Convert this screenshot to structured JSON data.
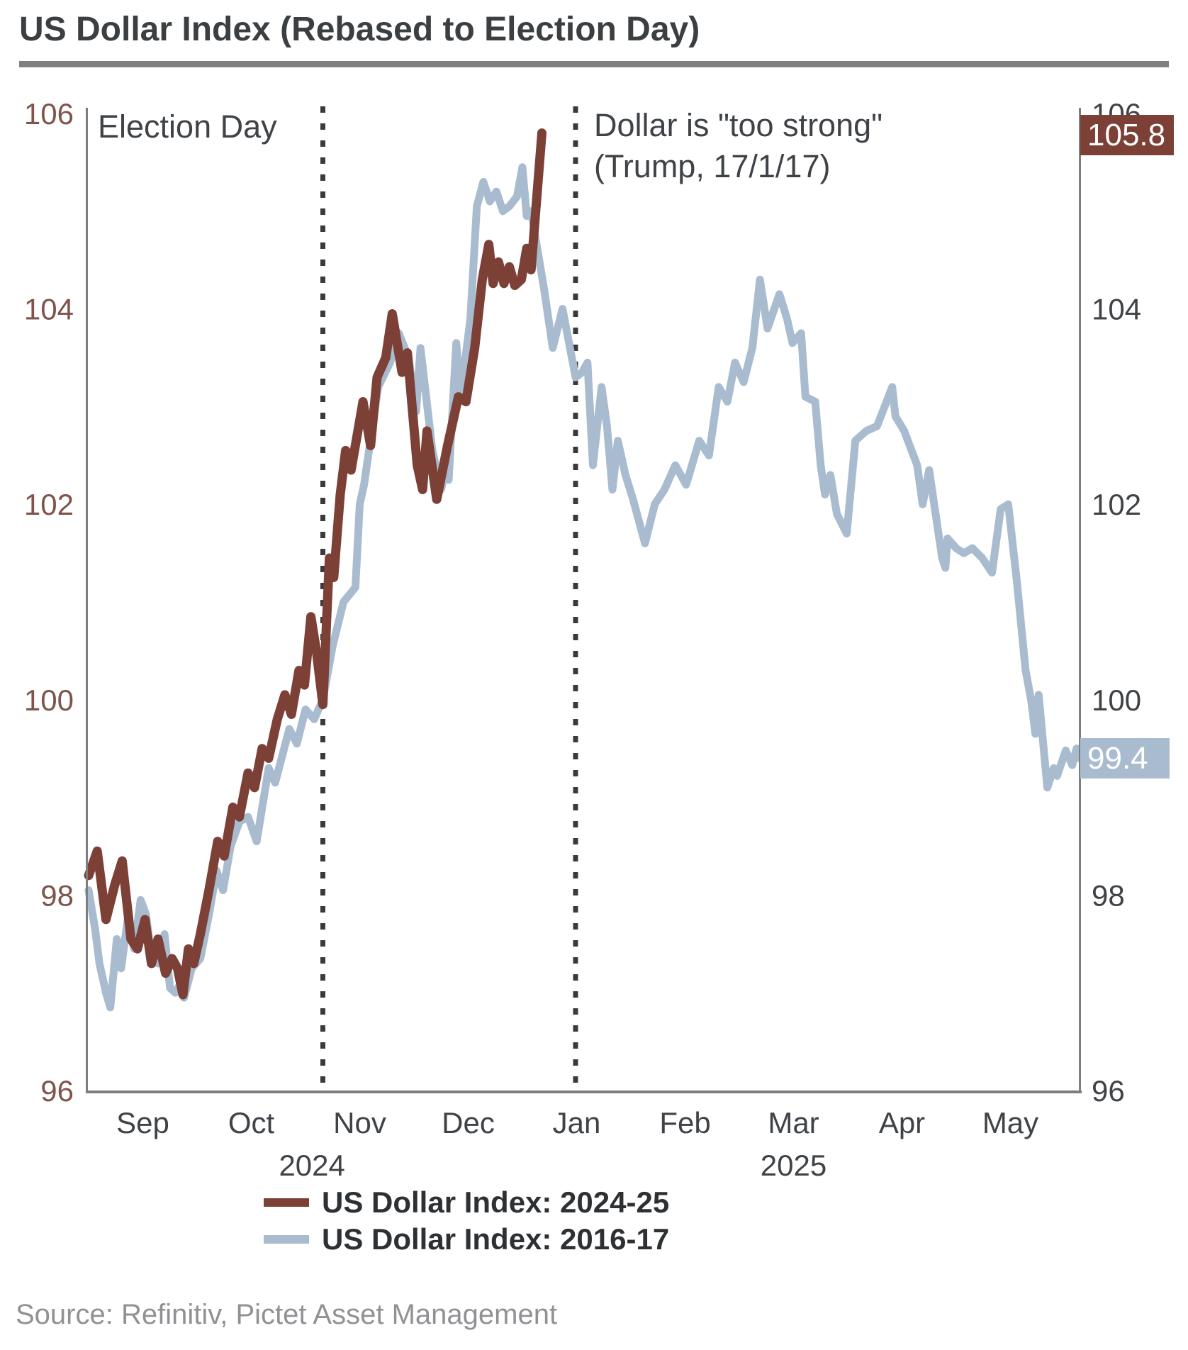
{
  "title": "US Dollar Index (Rebased to Election Day)",
  "source": "Source: Refinitiv, Pictet Asset Management",
  "annotations": {
    "election_day": "Election Day",
    "too_strong_line1": "Dollar is \"too strong\"",
    "too_strong_line2": "(Trump, 17/1/17)"
  },
  "badges": {
    "last_2024_25": "105.8",
    "last_2016_17": "99.4"
  },
  "legend": [
    {
      "label": "US Dollar Index: 2024-25",
      "color": "#7C4037"
    },
    {
      "label": "US Dollar Index: 2016-17",
      "color": "#A9BCCF"
    }
  ],
  "colors": {
    "accent_brown": "#7C4037",
    "accent_blue": "#A9BCCF",
    "axis_gray": "#7E7E7E",
    "left_tick_brown": "#7E544B",
    "text_dark": "#3F4347",
    "dotted_line": "#3A3A3A",
    "title_rule": "#808080"
  },
  "chart_data": {
    "type": "line",
    "title": "US Dollar Index (Rebased to Election Day)",
    "xlabel": "",
    "ylabel": "",
    "ylim": [
      96,
      106
    ],
    "grid": false,
    "legend_position": "bottom",
    "x_axis": {
      "unit": "months since 1 Sep of election year",
      "months": [
        {
          "label": "Sep",
          "t": 0.5
        },
        {
          "label": "Oct",
          "t": 1.5
        },
        {
          "label": "Nov",
          "t": 2.5
        },
        {
          "label": "Dec",
          "t": 3.5
        },
        {
          "label": "Jan",
          "t": 4.5
        },
        {
          "label": "Feb",
          "t": 5.5
        },
        {
          "label": "Mar",
          "t": 6.5
        },
        {
          "label": "Apr",
          "t": 7.5
        },
        {
          "label": "May",
          "t": 8.5
        }
      ],
      "years": [
        {
          "label": "2024",
          "t": 2.06
        },
        {
          "label": "2025",
          "t": 6.5
        }
      ]
    },
    "y_axis": {
      "ticks": [
        96,
        98,
        100,
        102,
        104,
        106
      ],
      "sides": [
        "left",
        "right"
      ]
    },
    "vlines": [
      {
        "t": 2.16,
        "label": "Election Day"
      },
      {
        "t": 4.49,
        "label": "Dollar is \"too strong\" (Trump, 17/1/17)"
      }
    ],
    "series": [
      {
        "name": "US Dollar Index: 2024-25",
        "color": "#7C4037",
        "last_value": 105.8,
        "points": [
          [
            0.0,
            98.2
          ],
          [
            0.08,
            98.45
          ],
          [
            0.16,
            97.75
          ],
          [
            0.24,
            98.1
          ],
          [
            0.31,
            98.35
          ],
          [
            0.39,
            97.55
          ],
          [
            0.45,
            97.45
          ],
          [
            0.52,
            97.75
          ],
          [
            0.58,
            97.3
          ],
          [
            0.64,
            97.55
          ],
          [
            0.71,
            97.2
          ],
          [
            0.77,
            97.35
          ],
          [
            0.82,
            97.25
          ],
          [
            0.87,
            96.98
          ],
          [
            0.92,
            97.45
          ],
          [
            0.97,
            97.3
          ],
          [
            1.03,
            97.6
          ],
          [
            1.11,
            98.05
          ],
          [
            1.19,
            98.55
          ],
          [
            1.25,
            98.4
          ],
          [
            1.33,
            98.9
          ],
          [
            1.39,
            98.8
          ],
          [
            1.47,
            99.25
          ],
          [
            1.53,
            99.1
          ],
          [
            1.6,
            99.5
          ],
          [
            1.66,
            99.4
          ],
          [
            1.74,
            99.8
          ],
          [
            1.81,
            100.05
          ],
          [
            1.87,
            99.85
          ],
          [
            1.94,
            100.3
          ],
          [
            1.99,
            100.15
          ],
          [
            2.05,
            100.85
          ],
          [
            2.1,
            100.5
          ],
          [
            2.16,
            99.95
          ],
          [
            2.22,
            101.45
          ],
          [
            2.26,
            101.25
          ],
          [
            2.32,
            102.1
          ],
          [
            2.37,
            102.55
          ],
          [
            2.42,
            102.35
          ],
          [
            2.53,
            103.05
          ],
          [
            2.6,
            102.6
          ],
          [
            2.66,
            103.3
          ],
          [
            2.74,
            103.5
          ],
          [
            2.8,
            103.95
          ],
          [
            2.89,
            103.35
          ],
          [
            2.94,
            103.55
          ],
          [
            3.03,
            102.4
          ],
          [
            3.08,
            102.15
          ],
          [
            3.12,
            102.75
          ],
          [
            3.21,
            102.05
          ],
          [
            3.31,
            102.6
          ],
          [
            3.41,
            103.1
          ],
          [
            3.48,
            103.05
          ],
          [
            3.56,
            103.6
          ],
          [
            3.63,
            104.3
          ],
          [
            3.69,
            104.66
          ],
          [
            3.73,
            104.26
          ],
          [
            3.78,
            104.48
          ],
          [
            3.83,
            104.26
          ],
          [
            3.88,
            104.43
          ],
          [
            3.93,
            104.24
          ],
          [
            3.99,
            104.3
          ],
          [
            4.04,
            104.62
          ],
          [
            4.08,
            104.4
          ],
          [
            4.18,
            105.8
          ]
        ]
      },
      {
        "name": "US Dollar Index: 2016-17",
        "color": "#A9BCCF",
        "last_value": 99.4,
        "points": [
          [
            0.0,
            98.05
          ],
          [
            0.06,
            97.65
          ],
          [
            0.1,
            97.3
          ],
          [
            0.16,
            97.0
          ],
          [
            0.2,
            96.85
          ],
          [
            0.26,
            97.55
          ],
          [
            0.3,
            97.25
          ],
          [
            0.36,
            97.75
          ],
          [
            0.42,
            97.45
          ],
          [
            0.48,
            97.95
          ],
          [
            0.53,
            97.8
          ],
          [
            0.58,
            97.35
          ],
          [
            0.64,
            97.3
          ],
          [
            0.7,
            97.6
          ],
          [
            0.75,
            97.05
          ],
          [
            0.8,
            97.0
          ],
          [
            0.85,
            97.1
          ],
          [
            0.88,
            96.95
          ],
          [
            0.95,
            97.25
          ],
          [
            1.03,
            97.35
          ],
          [
            1.11,
            97.8
          ],
          [
            1.18,
            98.25
          ],
          [
            1.24,
            98.05
          ],
          [
            1.31,
            98.5
          ],
          [
            1.39,
            98.75
          ],
          [
            1.47,
            98.8
          ],
          [
            1.55,
            98.55
          ],
          [
            1.66,
            99.3
          ],
          [
            1.72,
            99.15
          ],
          [
            1.85,
            99.7
          ],
          [
            1.92,
            99.55
          ],
          [
            2.0,
            99.9
          ],
          [
            2.08,
            99.8
          ],
          [
            2.16,
            100.0
          ],
          [
            2.25,
            100.55
          ],
          [
            2.35,
            101.0
          ],
          [
            2.46,
            101.15
          ],
          [
            2.5,
            102.0
          ],
          [
            2.54,
            102.2
          ],
          [
            2.67,
            103.2
          ],
          [
            2.78,
            103.45
          ],
          [
            2.86,
            103.75
          ],
          [
            2.95,
            103.5
          ],
          [
            3.02,
            102.95
          ],
          [
            3.06,
            103.6
          ],
          [
            3.17,
            102.55
          ],
          [
            3.25,
            102.15
          ],
          [
            3.28,
            102.3
          ],
          [
            3.32,
            102.25
          ],
          [
            3.39,
            103.65
          ],
          [
            3.43,
            103.1
          ],
          [
            3.52,
            103.9
          ],
          [
            3.58,
            105.05
          ],
          [
            3.64,
            105.3
          ],
          [
            3.7,
            105.1
          ],
          [
            3.76,
            105.2
          ],
          [
            3.82,
            105.0
          ],
          [
            3.88,
            105.05
          ],
          [
            3.95,
            105.15
          ],
          [
            4.0,
            105.45
          ],
          [
            4.04,
            104.95
          ],
          [
            4.08,
            105.0
          ],
          [
            4.2,
            104.2
          ],
          [
            4.28,
            103.6
          ],
          [
            4.37,
            104.0
          ],
          [
            4.49,
            103.3
          ],
          [
            4.55,
            103.35
          ],
          [
            4.6,
            103.45
          ],
          [
            4.65,
            102.4
          ],
          [
            4.73,
            103.2
          ],
          [
            4.78,
            102.8
          ],
          [
            4.83,
            102.15
          ],
          [
            4.88,
            102.65
          ],
          [
            4.95,
            102.3
          ],
          [
            5.02,
            102.05
          ],
          [
            5.13,
            101.6
          ],
          [
            5.22,
            102.0
          ],
          [
            5.31,
            102.15
          ],
          [
            5.41,
            102.4
          ],
          [
            5.51,
            102.2
          ],
          [
            5.63,
            102.65
          ],
          [
            5.72,
            102.5
          ],
          [
            5.81,
            103.2
          ],
          [
            5.89,
            103.05
          ],
          [
            5.96,
            103.45
          ],
          [
            6.04,
            103.25
          ],
          [
            6.12,
            103.6
          ],
          [
            6.19,
            104.3
          ],
          [
            6.26,
            103.8
          ],
          [
            6.37,
            104.15
          ],
          [
            6.44,
            103.9
          ],
          [
            6.49,
            103.65
          ],
          [
            6.57,
            103.75
          ],
          [
            6.61,
            103.1
          ],
          [
            6.7,
            103.05
          ],
          [
            6.75,
            102.4
          ],
          [
            6.79,
            102.1
          ],
          [
            6.84,
            102.3
          ],
          [
            6.9,
            101.9
          ],
          [
            6.99,
            101.7
          ],
          [
            7.07,
            102.65
          ],
          [
            7.17,
            102.75
          ],
          [
            7.27,
            102.8
          ],
          [
            7.41,
            103.2
          ],
          [
            7.44,
            102.9
          ],
          [
            7.52,
            102.75
          ],
          [
            7.64,
            102.4
          ],
          [
            7.69,
            102.0
          ],
          [
            7.75,
            102.35
          ],
          [
            7.87,
            101.45
          ],
          [
            7.9,
            101.35
          ],
          [
            7.92,
            101.65
          ],
          [
            8.0,
            101.55
          ],
          [
            8.07,
            101.5
          ],
          [
            8.15,
            101.55
          ],
          [
            8.24,
            101.45
          ],
          [
            8.33,
            101.3
          ],
          [
            8.41,
            101.95
          ],
          [
            8.48,
            102.0
          ],
          [
            8.56,
            101.2
          ],
          [
            8.64,
            100.3
          ],
          [
            8.69,
            100.0
          ],
          [
            8.73,
            99.65
          ],
          [
            8.76,
            100.05
          ],
          [
            8.84,
            99.1
          ],
          [
            8.9,
            99.3
          ],
          [
            8.93,
            99.22
          ],
          [
            9.01,
            99.48
          ],
          [
            9.07,
            99.33
          ],
          [
            9.11,
            99.5
          ],
          [
            9.14,
            99.4
          ]
        ]
      }
    ]
  }
}
